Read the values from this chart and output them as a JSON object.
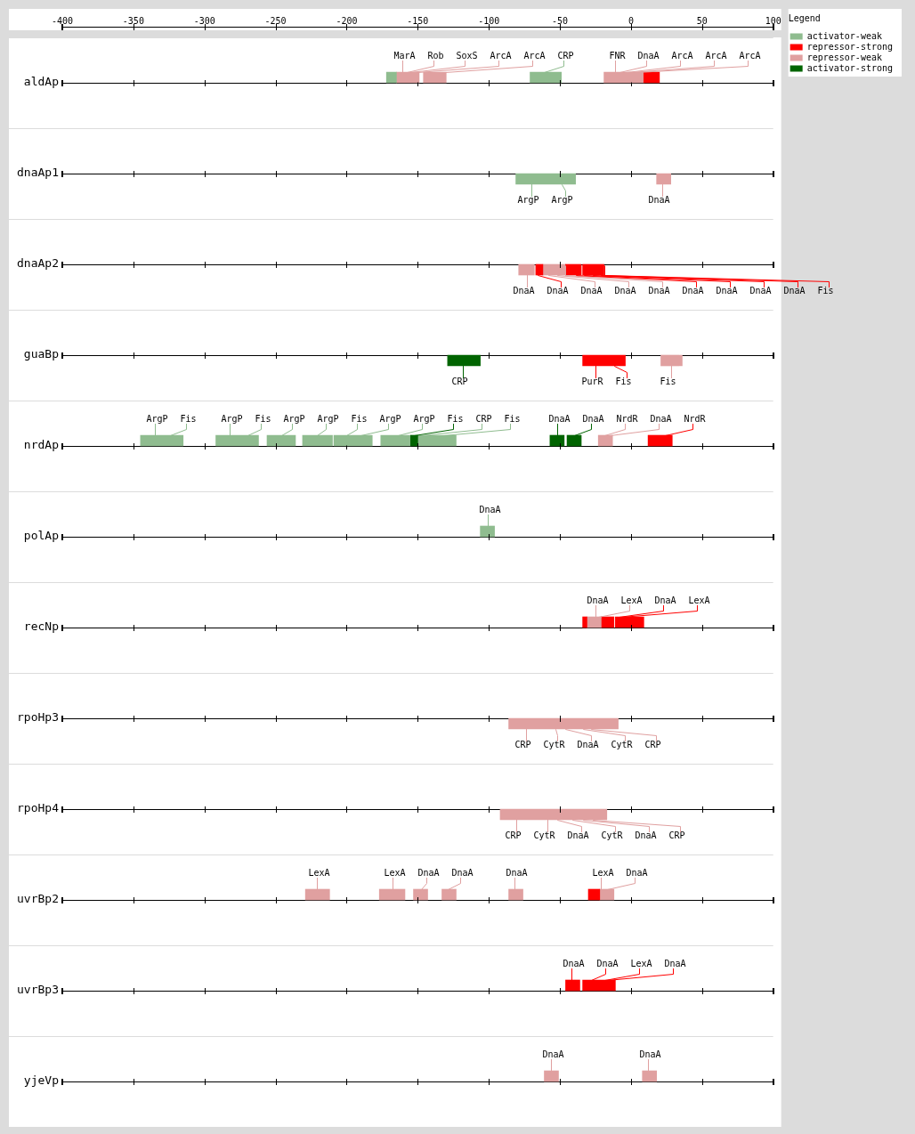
{
  "chart_data": {
    "type": "bar",
    "orientation": "horizontal",
    "legend": "top right",
    "legend_title": "Legend",
    "grid": "y",
    "categories": [
      "aldAp",
      "dnaAp1",
      "dnaAp2",
      "guaBp",
      "nrdAp",
      "polAp",
      "recNp",
      "rpoHp3",
      "rpoHp4",
      "uvrBp2",
      "uvrBp3",
      "yjeVp"
    ],
    "xlim": [
      -400,
      100
    ],
    "xticks": [
      -400,
      -350,
      -300,
      -250,
      -200,
      -150,
      -100,
      -50,
      0,
      50,
      100
    ],
    "series": [
      {
        "name": "activator-weak",
        "color": "#8fbc8f",
        "base": [
          -172,
          -81,
          null,
          null,
          -345,
          -106,
          null,
          null,
          null,
          null,
          null,
          null
        ],
        "values": [
          7,
          42,
          null,
          null,
          30,
          10,
          null,
          null,
          null,
          null,
          null,
          null
        ]
      },
      {
        "name": "repressor-strong",
        "color": "#ff0000",
        "base": [
          9,
          null,
          -67,
          -34,
          12,
          null,
          -34,
          null,
          null,
          -30,
          -46,
          null
        ],
        "values": [
          11,
          null,
          5,
          30,
          17,
          null,
          3,
          null,
          null,
          8,
          10,
          null
        ]
      },
      {
        "name": "repressor-weak",
        "color": "#e0a0a0",
        "base": [
          -165,
          18,
          -79,
          21,
          -23,
          null,
          -31,
          -86,
          -92,
          -229,
          null,
          -61
        ],
        "values": [
          16,
          10,
          11,
          15,
          10,
          null,
          10,
          77,
          75,
          17,
          null,
          10
        ]
      },
      {
        "name": "activator-strong",
        "color": "#006400",
        "base": [
          null,
          null,
          null,
          -129,
          -155,
          null,
          null,
          null,
          null,
          null,
          null,
          null
        ],
        "values": [
          null,
          null,
          null,
          23,
          5,
          null,
          null,
          null,
          null,
          null,
          null,
          null
        ]
      },
      {
        "color": "#8fbc8f",
        "base": [
          -71,
          null,
          null,
          null,
          -292,
          null,
          null,
          null,
          null,
          null,
          null,
          null
        ],
        "values": [
          22,
          null,
          null,
          null,
          30,
          null,
          null,
          null,
          null,
          null,
          null,
          null
        ]
      },
      {
        "color": "#8fbc8f",
        "base": [
          null,
          null,
          null,
          null,
          -256,
          null,
          null,
          null,
          null,
          null,
          null,
          null
        ],
        "values": [
          null,
          null,
          null,
          null,
          20,
          null,
          null,
          null,
          null,
          null,
          null,
          null
        ]
      },
      {
        "color": "#8fbc8f",
        "base": [
          null,
          null,
          null,
          null,
          -231,
          null,
          null,
          null,
          null,
          null,
          null,
          null
        ],
        "values": [
          null,
          null,
          null,
          null,
          21,
          null,
          null,
          null,
          null,
          null,
          null,
          null
        ]
      },
      {
        "color": "#8fbc8f",
        "base": [
          null,
          null,
          null,
          null,
          -209,
          null,
          null,
          null,
          null,
          null,
          null,
          null
        ],
        "values": [
          null,
          null,
          null,
          null,
          27,
          null,
          null,
          null,
          null,
          null,
          null,
          null
        ]
      },
      {
        "color": "#8fbc8f",
        "base": [
          null,
          null,
          null,
          null,
          -176,
          null,
          null,
          null,
          null,
          null,
          null,
          null
        ],
        "values": [
          null,
          null,
          null,
          null,
          21,
          null,
          null,
          null,
          null,
          null,
          null,
          null
        ]
      },
      {
        "color": "#8fbc8f",
        "base": [
          null,
          null,
          null,
          null,
          -150,
          null,
          null,
          null,
          null,
          null,
          null,
          null
        ],
        "values": [
          null,
          null,
          null,
          null,
          27,
          null,
          null,
          null,
          null,
          null,
          null,
          null
        ]
      },
      {
        "color": "#ff0000",
        "base": [
          null,
          null,
          -46,
          null,
          null,
          null,
          -21,
          null,
          null,
          null,
          -34,
          null
        ],
        "values": [
          null,
          null,
          11,
          null,
          null,
          null,
          9,
          null,
          null,
          null,
          23,
          null
        ]
      },
      {
        "color": "#ff0000",
        "base": [
          null,
          null,
          -34,
          null,
          null,
          null,
          -11,
          null,
          null,
          null,
          null,
          null
        ],
        "values": [
          null,
          null,
          15,
          null,
          null,
          null,
          20,
          null,
          null,
          null,
          null,
          null
        ]
      },
      {
        "color": "#e0a0a0",
        "base": [
          -146,
          null,
          -62,
          null,
          null,
          null,
          null,
          null,
          null,
          -177,
          null,
          8
        ],
        "values": [
          16,
          null,
          16,
          null,
          null,
          null,
          null,
          null,
          null,
          18,
          null,
          10
        ]
      },
      {
        "color": "#e0a0a0",
        "base": [
          -19,
          null,
          null,
          null,
          null,
          null,
          null,
          null,
          null,
          -153,
          null,
          null
        ],
        "values": [
          28,
          null,
          null,
          null,
          null,
          null,
          null,
          null,
          null,
          10,
          null,
          null
        ]
      },
      {
        "color": "#e0a0a0",
        "base": [
          null,
          null,
          null,
          null,
          null,
          null,
          null,
          null,
          null,
          -133,
          null,
          null
        ],
        "values": [
          null,
          null,
          null,
          null,
          null,
          null,
          null,
          null,
          null,
          10,
          null,
          null
        ]
      },
      {
        "color": "#e0a0a0",
        "base": [
          null,
          null,
          null,
          null,
          null,
          null,
          null,
          null,
          null,
          -86,
          null,
          null
        ],
        "values": [
          null,
          null,
          null,
          null,
          null,
          null,
          null,
          null,
          null,
          10,
          null,
          null
        ]
      },
      {
        "color": "#e0a0a0",
        "base": [
          null,
          null,
          null,
          null,
          null,
          null,
          null,
          null,
          null,
          -22,
          null,
          null
        ],
        "values": [
          null,
          null,
          null,
          null,
          null,
          null,
          null,
          null,
          null,
          10,
          null,
          null
        ]
      },
      {
        "color": "#006400",
        "base": [
          null,
          null,
          null,
          null,
          -57,
          null,
          null,
          null,
          null,
          null,
          null,
          null
        ],
        "values": [
          null,
          null,
          null,
          null,
          10,
          null,
          null,
          null,
          null,
          null,
          null,
          null
        ]
      },
      {
        "color": "#006400",
        "base": [
          null,
          null,
          null,
          null,
          -45,
          null,
          null,
          null,
          null,
          null,
          null,
          null
        ],
        "values": [
          null,
          null,
          null,
          null,
          10,
          null,
          null,
          null,
          null,
          null,
          null,
          null
        ]
      }
    ],
    "annotations": [
      {
        "text": "MarA",
        "x": -161,
        "y": "aldAp"
      },
      {
        "text": "Rob",
        "x": -158,
        "y": "aldAp"
      },
      {
        "text": "SoxS",
        "x": -155,
        "y": "aldAp"
      },
      {
        "text": "ArcA",
        "x": -150,
        "y": "aldAp"
      },
      {
        "text": "ArcA",
        "x": -131,
        "y": "aldAp"
      },
      {
        "text": "CRP",
        "x": -61,
        "y": "aldAp"
      },
      {
        "text": "FNR",
        "x": -11,
        "y": "aldAp"
      },
      {
        "text": "DnaA",
        "x": -8,
        "y": "aldAp"
      },
      {
        "text": "ArcA",
        "x": -4,
        "y": "aldAp"
      },
      {
        "text": "ArcA",
        "x": 0,
        "y": "aldAp"
      },
      {
        "text": "ArcA",
        "x": 4,
        "y": "aldAp"
      },
      {
        "text": "ArgP",
        "x": -70,
        "y": "dnaAp1"
      },
      {
        "text": "ArgP",
        "x": -49,
        "y": "dnaAp1"
      },
      {
        "text": "DnaA",
        "x": 22,
        "y": "dnaAp1"
      },
      {
        "text": "CRP",
        "x": -118,
        "y": "guaBp"
      },
      {
        "text": "PurR",
        "x": -25,
        "y": "guaBp"
      },
      {
        "text": "Fis",
        "x": -12,
        "y": "guaBp"
      },
      {
        "text": "Fis",
        "x": 28,
        "y": "guaBp"
      },
      {
        "text": "ArgP",
        "x": -335,
        "y": "nrdAp"
      },
      {
        "text": "Fis",
        "x": -324,
        "y": "nrdAp"
      },
      {
        "text": "ArgP",
        "x": -282,
        "y": "nrdAp"
      },
      {
        "text": "Fis",
        "x": -270,
        "y": "nrdAp"
      },
      {
        "text": "ArgP",
        "x": -246,
        "y": "nrdAp"
      },
      {
        "text": "ArgP",
        "x": -221,
        "y": "nrdAp"
      },
      {
        "text": "Fis",
        "x": -200,
        "y": "nrdAp"
      },
      {
        "text": "ArgP",
        "x": -190,
        "y": "nrdAp"
      },
      {
        "text": "ArgP",
        "x": -164,
        "y": "nrdAp"
      },
      {
        "text": "Fis",
        "x": -153,
        "y": "nrdAp"
      },
      {
        "text": "CRP",
        "x": -148,
        "y": "nrdAp"
      },
      {
        "text": "Fis",
        "x": -132,
        "y": "nrdAp"
      },
      {
        "text": "DnaA",
        "x": -52,
        "y": "nrdAp"
      },
      {
        "text": "DnaA",
        "x": -40,
        "y": "nrdAp"
      },
      {
        "text": "NrdR",
        "x": -19,
        "y": "nrdAp"
      },
      {
        "text": "DnaA",
        "x": -15,
        "y": "nrdAp"
      },
      {
        "text": "NrdR",
        "x": 24,
        "y": "nrdAp"
      },
      {
        "text": "DnaA",
        "x": -101,
        "y": "polAp"
      },
      {
        "text": "DnaA",
        "x": -25,
        "y": "recNp"
      },
      {
        "text": "LexA",
        "x": -23,
        "y": "recNp"
      },
      {
        "text": "DnaA",
        "x": -9,
        "y": "recNp"
      },
      {
        "text": "LexA",
        "x": -7,
        "y": "recNp"
      },
      {
        "text": "CRP",
        "x": -74,
        "y": "rpoHp3"
      },
      {
        "text": "CytR",
        "x": -53,
        "y": "rpoHp3"
      },
      {
        "text": "DnaA",
        "x": -46,
        "y": "rpoHp3"
      },
      {
        "text": "CytR",
        "x": -34,
        "y": "rpoHp3"
      },
      {
        "text": "CRP",
        "x": -28,
        "y": "rpoHp3"
      },
      {
        "text": "CRP",
        "x": -81,
        "y": "rpoHp4"
      },
      {
        "text": "CytR",
        "x": -59,
        "y": "rpoHp4"
      },
      {
        "text": "DnaA",
        "x": -52,
        "y": "rpoHp4"
      },
      {
        "text": "CytR",
        "x": -41,
        "y": "rpoHp4"
      },
      {
        "text": "DnaA",
        "x": -34,
        "y": "rpoHp4"
      },
      {
        "text": "CRP",
        "x": -27,
        "y": "rpoHp4"
      },
      {
        "text": "LexA",
        "x": -221,
        "y": "uvrBp2"
      },
      {
        "text": "LexA",
        "x": -168,
        "y": "uvrBp2"
      },
      {
        "text": "DnaA",
        "x": -148,
        "y": "uvrBp2"
      },
      {
        "text": "DnaA",
        "x": -129,
        "y": "uvrBp2"
      },
      {
        "text": "DnaA",
        "x": -82,
        "y": "uvrBp2"
      },
      {
        "text": "LexA",
        "x": -21,
        "y": "uvrBp2"
      },
      {
        "text": "DnaA",
        "x": -17,
        "y": "uvrBp2"
      },
      {
        "text": "DnaA",
        "x": -42,
        "y": "uvrBp3"
      },
      {
        "text": "DnaA",
        "x": -28,
        "y": "uvrBp3"
      },
      {
        "text": "LexA",
        "x": -19,
        "y": "uvrBp3"
      },
      {
        "text": "DnaA",
        "x": -17,
        "y": "uvrBp3"
      },
      {
        "text": "DnaA",
        "x": -56,
        "y": "yjeVp"
      },
      {
        "text": "DnaA",
        "x": 12,
        "y": "yjeVp"
      },
      {
        "text": "DnaA",
        "x": -73,
        "y": "dnaAp2"
      },
      {
        "text": "DnaA",
        "x": -66,
        "y": "dnaAp2"
      },
      {
        "text": "DnaA",
        "x": -58,
        "y": "dnaAp2"
      },
      {
        "text": "DnaA",
        "x": -52,
        "y": "dnaAp2"
      },
      {
        "text": "DnaA",
        "x": -46,
        "y": "dnaAp2"
      },
      {
        "text": "DnaA",
        "x": -39,
        "y": "dnaAp2"
      },
      {
        "text": "DnaA",
        "x": -33,
        "y": "dnaAp2"
      },
      {
        "text": "DnaA",
        "x": -27,
        "y": "dnaAp2"
      },
      {
        "text": "DnaA",
        "x": -21,
        "y": "dnaAp2"
      },
      {
        "text": "Fis",
        "x": -19,
        "y": "dnaAp2"
      }
    ]
  }
}
